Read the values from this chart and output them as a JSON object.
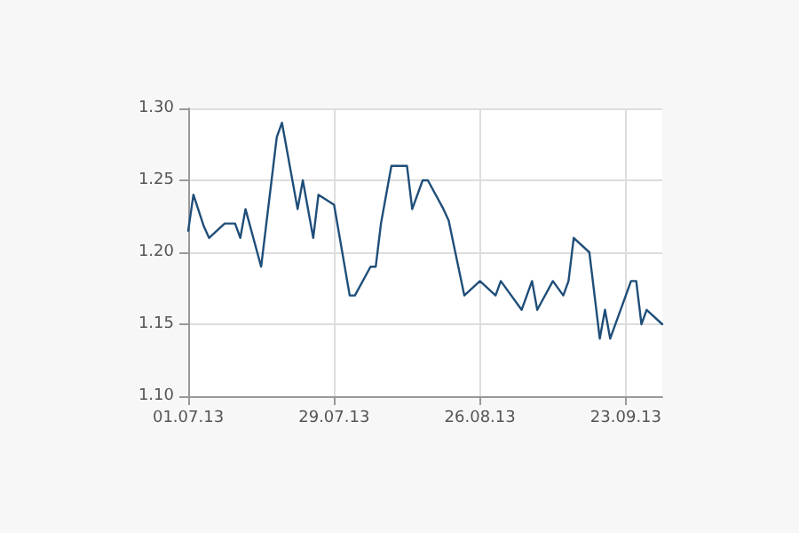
{
  "chart_data": {
    "type": "line",
    "x": [
      "2013-07-01",
      "2013-07-02",
      "2013-07-04",
      "2013-07-05",
      "2013-07-08",
      "2013-07-10",
      "2013-07-11",
      "2013-07-12",
      "2013-07-15",
      "2013-07-18",
      "2013-07-19",
      "2013-07-22",
      "2013-07-23",
      "2013-07-25",
      "2013-07-26",
      "2013-07-29",
      "2013-08-01",
      "2013-08-02",
      "2013-08-05",
      "2013-08-06",
      "2013-08-07",
      "2013-08-08",
      "2013-08-09",
      "2013-08-12",
      "2013-08-13",
      "2013-08-15",
      "2013-08-16",
      "2013-08-19",
      "2013-08-20",
      "2013-08-23",
      "2013-08-26",
      "2013-08-29",
      "2013-08-30",
      "2013-09-03",
      "2013-09-05",
      "2013-09-06",
      "2013-09-09",
      "2013-09-11",
      "2013-09-12",
      "2013-09-13",
      "2013-09-16",
      "2013-09-18",
      "2013-09-19",
      "2013-09-20",
      "2013-09-23",
      "2013-09-24",
      "2013-09-25",
      "2013-09-26",
      "2013-09-27",
      "2013-09-30"
    ],
    "series": [
      {
        "color": "#1f4e79",
        "values": [
          1.215,
          1.24,
          1.218,
          1.21,
          1.22,
          1.22,
          1.21,
          1.23,
          1.19,
          1.28,
          1.29,
          1.23,
          1.25,
          1.21,
          1.24,
          1.233,
          1.17,
          1.17,
          1.19,
          1.19,
          1.22,
          1.24,
          1.26,
          1.26,
          1.23,
          1.25,
          1.25,
          1.23,
          1.222,
          1.17,
          1.18,
          1.17,
          1.18,
          1.16,
          1.18,
          1.16,
          1.18,
          1.17,
          1.18,
          1.21,
          1.2,
          1.14,
          1.16,
          1.14,
          1.17,
          1.18,
          1.18,
          1.15,
          1.16,
          1.15
        ]
      }
    ],
    "xlim": [
      "2013-07-01",
      "2013-09-30"
    ],
    "xticks": [
      {
        "value": "2013-07-01",
        "label": "01.07.13"
      },
      {
        "value": "2013-07-29",
        "label": "29.07.13"
      },
      {
        "value": "2013-08-26",
        "label": "26.08.13"
      },
      {
        "value": "2013-09-23",
        "label": "23.09.13"
      }
    ],
    "ylim": [
      1.1,
      1.3
    ],
    "yticks": [
      {
        "value": 1.1,
        "label": "1.10"
      },
      {
        "value": 1.15,
        "label": "1.15"
      },
      {
        "value": 1.2,
        "label": "1.20"
      },
      {
        "value": 1.25,
        "label": "1.25"
      },
      {
        "value": 1.3,
        "label": "1.30"
      }
    ],
    "grid": true,
    "marker": "none"
  }
}
